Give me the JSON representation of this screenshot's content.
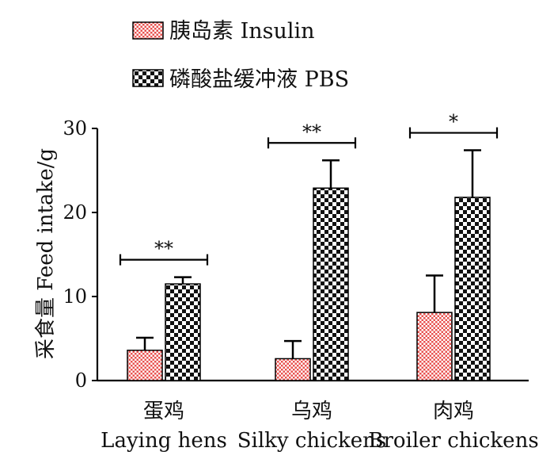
{
  "chart_data": {
    "type": "bar",
    "ylabel": "采食量 Feed intake/g",
    "ylim": [
      0,
      30
    ],
    "yticks": [
      0,
      10,
      20,
      30
    ],
    "categories": [
      {
        "zh": "蛋鸡",
        "en": "Laying hens"
      },
      {
        "zh": "乌鸡",
        "en": "Silky chickens"
      },
      {
        "zh": "肉鸡",
        "en": "Broiler chickens"
      }
    ],
    "series": [
      {
        "name": "胰岛素 Insulin",
        "pattern": "red-check",
        "color": "#e8524f",
        "values": [
          3.6,
          2.6,
          8.1
        ],
        "errors": [
          1.5,
          2.1,
          4.4
        ]
      },
      {
        "name": "磷酸盐缓冲液 PBS",
        "pattern": "black-check",
        "color": "#111111",
        "values": [
          11.5,
          22.9,
          21.8
        ],
        "errors": [
          0.8,
          3.3,
          5.6
        ]
      }
    ],
    "significance": [
      "**",
      "**",
      "*"
    ],
    "legend_position": "top-left",
    "grid": false
  }
}
